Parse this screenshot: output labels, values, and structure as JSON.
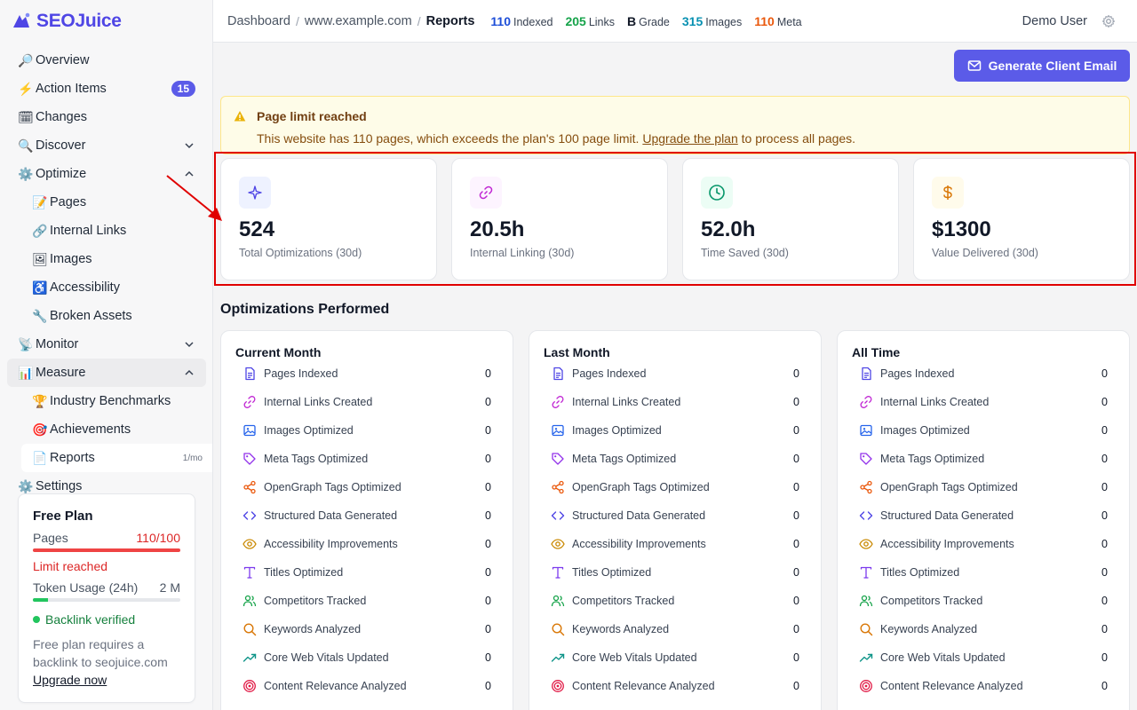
{
  "brand": {
    "name": "SEOJuice"
  },
  "sidebar": {
    "items": [
      {
        "icon": "🔎",
        "label": "Overview"
      },
      {
        "icon": "⚡",
        "label": "Action Items",
        "badge": "15"
      },
      {
        "icon": "🗓",
        "label": "Changes"
      },
      {
        "icon": "🔍",
        "label": "Discover"
      },
      {
        "icon": "⚙️",
        "label": "Optimize"
      },
      {
        "icon": "📝",
        "label": "Pages"
      },
      {
        "icon": "🔗",
        "label": "Internal Links"
      },
      {
        "icon": "🖼",
        "label": "Images"
      },
      {
        "icon": "♿",
        "label": "Accessibility"
      },
      {
        "icon": "🔧",
        "label": "Broken Assets"
      },
      {
        "icon": "📡",
        "label": "Monitor"
      },
      {
        "icon": "📊",
        "label": "Measure"
      },
      {
        "icon": "🏆",
        "label": "Industry Benchmarks"
      },
      {
        "icon": "🎯",
        "label": "Achievements"
      },
      {
        "icon": "📄",
        "label": "Reports",
        "meta": "1/mo"
      },
      {
        "icon": "⚙️",
        "label": "Settings"
      }
    ]
  },
  "plan": {
    "title": "Free Plan",
    "pages_label": "Pages",
    "pages_value": "110/100",
    "pages_progress": 1.0,
    "limit_text": "Limit reached",
    "token_label": "Token Usage (24h)",
    "token_value": "2 M",
    "token_progress": 0.1,
    "verified_text": "Backlink verified",
    "note": "Free plan requires a backlink to seojuice.com",
    "upgrade_link": "Upgrade now"
  },
  "header": {
    "breadcrumbs": [
      "Dashboard",
      "www.example.com",
      "Reports"
    ],
    "stats": [
      {
        "value": "110",
        "label": "Indexed",
        "color": "#1d4ed8"
      },
      {
        "value": "205",
        "label": "Links",
        "color": "#16a34a"
      },
      {
        "value": "B",
        "label": "Grade",
        "color": "#111827"
      },
      {
        "value": "315",
        "label": "Images",
        "color": "#0891b2"
      },
      {
        "value": "110",
        "label": "Meta",
        "color": "#ea580c"
      }
    ],
    "user": "Demo User"
  },
  "actions": {
    "generate_email": "Generate Client Email"
  },
  "alert": {
    "title": "Page limit reached",
    "body_before": "This website has 110 pages, which exceeds the plan's 100 page limit. ",
    "link": "Upgrade the plan",
    "body_after": " to process all pages."
  },
  "metrics": [
    {
      "value": "524",
      "label": "Total Optimizations (30d)",
      "icon": "sparkle-icon",
      "color": "#4f46e5",
      "bg": "#eef2ff"
    },
    {
      "value": "20.5h",
      "label": "Internal Linking (30d)",
      "icon": "link-icon",
      "color": "#c026d3",
      "bg": "#fdf4ff"
    },
    {
      "value": "52.0h",
      "label": "Time Saved (30d)",
      "icon": "clock-icon",
      "color": "#059669",
      "bg": "#ecfdf5"
    },
    {
      "value": "$1300",
      "label": "Value Delivered (30d)",
      "icon": "dollar-icon",
      "color": "#d97706",
      "bg": "#fffbeb"
    }
  ],
  "section": {
    "title": "Optimizations Performed"
  },
  "columns": [
    {
      "title": "Current Month"
    },
    {
      "title": "Last Month"
    },
    {
      "title": "All Time"
    }
  ],
  "rows": [
    {
      "label": "Pages Indexed",
      "icon": "document-icon",
      "color": "#4f46e5",
      "values": [
        "0",
        "0",
        "0"
      ]
    },
    {
      "label": "Internal Links Created",
      "icon": "link-icon",
      "color": "#c026d3",
      "values": [
        "0",
        "0",
        "0"
      ]
    },
    {
      "label": "Images Optimized",
      "icon": "image-icon",
      "color": "#2563eb",
      "values": [
        "0",
        "0",
        "0"
      ]
    },
    {
      "label": "Meta Tags Optimized",
      "icon": "tag-icon",
      "color": "#9333ea",
      "values": [
        "0",
        "0",
        "0"
      ]
    },
    {
      "label": "OpenGraph Tags Optimized",
      "icon": "share-icon",
      "color": "#ea580c",
      "values": [
        "0",
        "0",
        "0"
      ]
    },
    {
      "label": "Structured Data Generated",
      "icon": "code-icon",
      "color": "#4f46e5",
      "values": [
        "0",
        "0",
        "0"
      ]
    },
    {
      "label": "Accessibility Improvements",
      "icon": "eye-icon",
      "color": "#ca8a04",
      "values": [
        "0",
        "0",
        "0"
      ]
    },
    {
      "label": "Titles Optimized",
      "icon": "title-icon",
      "color": "#7c3aed",
      "values": [
        "0",
        "0",
        "0"
      ]
    },
    {
      "label": "Competitors Tracked",
      "icon": "users-icon",
      "color": "#16a34a",
      "values": [
        "0",
        "0",
        "0"
      ]
    },
    {
      "label": "Keywords Analyzed",
      "icon": "search-icon",
      "color": "#d97706",
      "values": [
        "0",
        "0",
        "0"
      ]
    },
    {
      "label": "Core Web Vitals Updated",
      "icon": "trend-icon",
      "color": "#0d9488",
      "values": [
        "0",
        "0",
        "0"
      ]
    },
    {
      "label": "Content Relevance Analyzed",
      "icon": "target-icon",
      "color": "#e11d48",
      "values": [
        "0",
        "0",
        "0"
      ]
    }
  ]
}
